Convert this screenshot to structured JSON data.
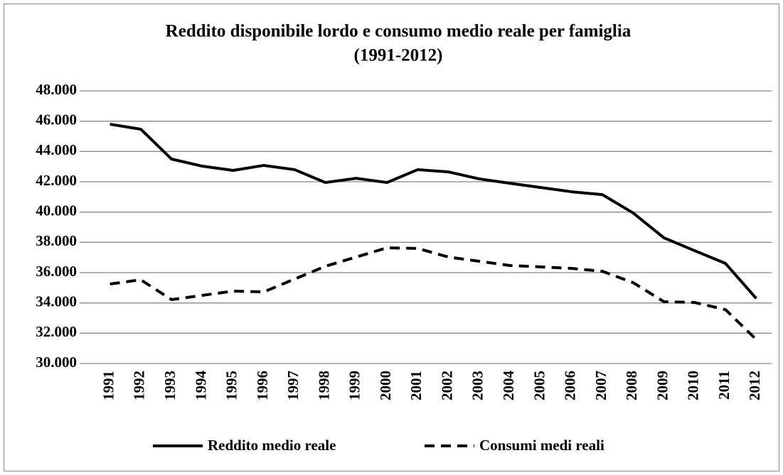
{
  "chart_data": {
    "type": "line",
    "title": [
      "Reddito disponibile lordo e consumo medio reale per famiglia",
      "(1991-2012)"
    ],
    "categories": [
      "1991",
      "1992",
      "1993",
      "1994",
      "1995",
      "1996",
      "1997",
      "1998",
      "1999",
      "2000",
      "2001",
      "2002",
      "2003",
      "2004",
      "2005",
      "2006",
      "2007",
      "2008",
      "2009",
      "2010",
      "2011",
      "2012"
    ],
    "series": [
      {
        "name": "Reddito medio reale",
        "color": "#000000",
        "dash": "solid",
        "values": [
          45800,
          45470,
          43500,
          43030,
          42750,
          43080,
          42800,
          41950,
          42230,
          41950,
          42800,
          42650,
          42190,
          41900,
          41620,
          41340,
          41150,
          39940,
          38300,
          37450,
          36610,
          34300
        ]
      },
      {
        "name": "Consumi medi reali",
        "color": "#000000",
        "dash": "dashed",
        "values": [
          35250,
          35530,
          34220,
          34500,
          34780,
          34730,
          35580,
          36420,
          37030,
          37640,
          37600,
          37030,
          36750,
          36470,
          36380,
          36280,
          36090,
          35340,
          34080,
          34030,
          33560,
          31590
        ]
      }
    ],
    "ylim": [
      30000,
      48000
    ],
    "yticks": [
      {
        "value": 30000,
        "label": "30.000"
      },
      {
        "value": 32000,
        "label": "32.000"
      },
      {
        "value": 34000,
        "label": "34.000"
      },
      {
        "value": 36000,
        "label": "36.000"
      },
      {
        "value": 38000,
        "label": "38.000"
      },
      {
        "value": 40000,
        "label": "40.000"
      },
      {
        "value": 42000,
        "label": "42.000"
      },
      {
        "value": 44000,
        "label": "44.000"
      },
      {
        "value": 46000,
        "label": "46.000"
      },
      {
        "value": 48000,
        "label": "48.000"
      }
    ],
    "grid": true,
    "legend": "bottom"
  }
}
